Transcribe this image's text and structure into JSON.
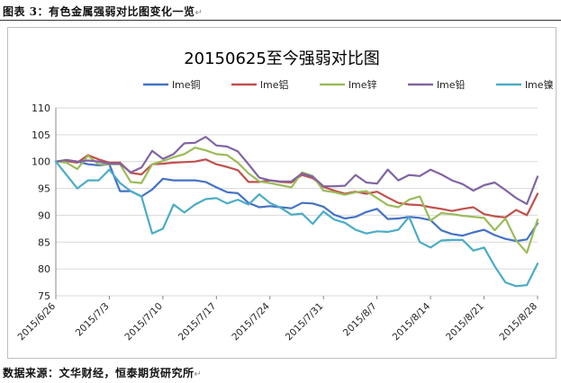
{
  "caption": "图表 3：有色金属强弱对比图变化一览",
  "source": "数据来源：文华财经，恒泰期货研究所",
  "chart_data": {
    "type": "line",
    "title": "20150625至今强弱对比图",
    "xlabel": "",
    "ylabel": "",
    "ylim": [
      75,
      110
    ],
    "y_ticks": [
      75,
      80,
      85,
      90,
      95,
      100,
      105,
      110
    ],
    "grid": true,
    "legend_position": "top",
    "x_tick_labels": [
      "2015/6/26",
      "2015/7/3",
      "2015/7/10",
      "2015/7/17",
      "2015/7/24",
      "2015/7/31",
      "2015/8/7",
      "2015/8/14",
      "2015/8/21",
      "2015/8/28"
    ],
    "x": [
      "2015/6/26",
      "2015/6/29",
      "2015/6/30",
      "2015/7/1",
      "2015/7/2",
      "2015/7/3",
      "2015/7/6",
      "2015/7/7",
      "2015/7/8",
      "2015/7/9",
      "2015/7/10",
      "2015/7/13",
      "2015/7/14",
      "2015/7/15",
      "2015/7/16",
      "2015/7/17",
      "2015/7/20",
      "2015/7/21",
      "2015/7/22",
      "2015/7/23",
      "2015/7/24",
      "2015/7/27",
      "2015/7/28",
      "2015/7/29",
      "2015/7/30",
      "2015/7/31",
      "2015/8/3",
      "2015/8/4",
      "2015/8/5",
      "2015/8/6",
      "2015/8/7",
      "2015/8/10",
      "2015/8/11",
      "2015/8/12",
      "2015/8/13",
      "2015/8/14",
      "2015/8/17",
      "2015/8/18",
      "2015/8/19",
      "2015/8/20",
      "2015/8/21",
      "2015/8/24",
      "2015/8/25",
      "2015/8/26",
      "2015/8/27",
      "2015/8/28"
    ],
    "series": [
      {
        "name": "lme铜",
        "color": "#4472c4",
        "values": [
          100,
          100.2,
          100,
          99.5,
          99.3,
          99.5,
          94.5,
          94.5,
          93.5,
          94.8,
          96.8,
          96.5,
          96.5,
          96.5,
          96.2,
          95.2,
          94.3,
          94.1,
          92.3,
          91.5,
          91.7,
          91.5,
          91.3,
          92.3,
          92.2,
          91.6,
          90.1,
          89.4,
          89.7,
          90.6,
          91.2,
          89.3,
          89.4,
          89.7,
          89.5,
          89.1,
          87.2,
          86.5,
          86.2,
          86.8,
          87.3,
          86.3,
          85.6,
          85.2,
          85.5,
          88.5
        ]
      },
      {
        "name": "lme铝",
        "color": "#c0504d",
        "values": [
          100,
          100.1,
          99.8,
          101.2,
          100.4,
          99.8,
          99.8,
          97.9,
          97.6,
          99.5,
          99.6,
          99.8,
          99.9,
          100.0,
          100.4,
          99.5,
          99.0,
          98.4,
          96.2,
          96.2,
          96.5,
          96.2,
          96.1,
          97.5,
          96.9,
          95.3,
          94.6,
          94.0,
          94.4,
          94.0,
          94.4,
          93.3,
          92.3,
          92.0,
          91.9,
          91.5,
          91.2,
          90.8,
          91.2,
          91.5,
          90.2,
          89.8,
          89.6,
          91.0,
          90.0,
          94.0
        ]
      },
      {
        "name": "lme锌",
        "color": "#9bbb59",
        "values": [
          100,
          99.8,
          98.6,
          101.1,
          99.5,
          99.5,
          99.5,
          96.2,
          96.0,
          99.5,
          100.1,
          100.8,
          101.4,
          102.6,
          102.1,
          101.4,
          101.2,
          99.8,
          97.8,
          96.3,
          96.0,
          95.6,
          95.2,
          98.0,
          97.3,
          94.6,
          94.3,
          93.8,
          94.3,
          94.5,
          93.2,
          91.9,
          91.5,
          92.9,
          93.5,
          89.0,
          90.4,
          90.2,
          89.9,
          89.7,
          89.5,
          87.2,
          89.4,
          85.3,
          83.0,
          89.2
        ]
      },
      {
        "name": "lme铅",
        "color": "#8064a2",
        "values": [
          100,
          100.3,
          100.0,
          100.2,
          100.0,
          99.6,
          99.6,
          98.0,
          98.9,
          102.0,
          100.5,
          101.4,
          103.4,
          103.5,
          104.6,
          103.0,
          102.8,
          101.9,
          99.5,
          97.0,
          96.5,
          96.3,
          96.3,
          97.8,
          97.2,
          95.4,
          95.4,
          95.5,
          97.5,
          96.1,
          95.9,
          98.5,
          96.5,
          97.5,
          97.3,
          98.5,
          97.6,
          96.5,
          95.8,
          94.6,
          95.6,
          96.1,
          94.7,
          93.2,
          92.1,
          97.2
        ]
      },
      {
        "name": "lme镍",
        "color": "#4bacc6",
        "values": [
          100,
          97.5,
          95.0,
          96.5,
          96.5,
          98.5,
          96.0,
          94.5,
          93.5,
          86.6,
          87.5,
          92.0,
          90.5,
          92.0,
          93.0,
          93.2,
          92.2,
          92.9,
          92.0,
          93.9,
          92.3,
          91.4,
          90.1,
          90.3,
          88.4,
          90.7,
          89.2,
          88.6,
          87.3,
          86.6,
          87.0,
          86.9,
          87.3,
          89.7,
          85.0,
          84.0,
          85.3,
          85.4,
          85.4,
          83.4,
          84.0,
          80.5,
          77.5,
          76.8,
          77.0,
          81.0
        ]
      }
    ]
  }
}
